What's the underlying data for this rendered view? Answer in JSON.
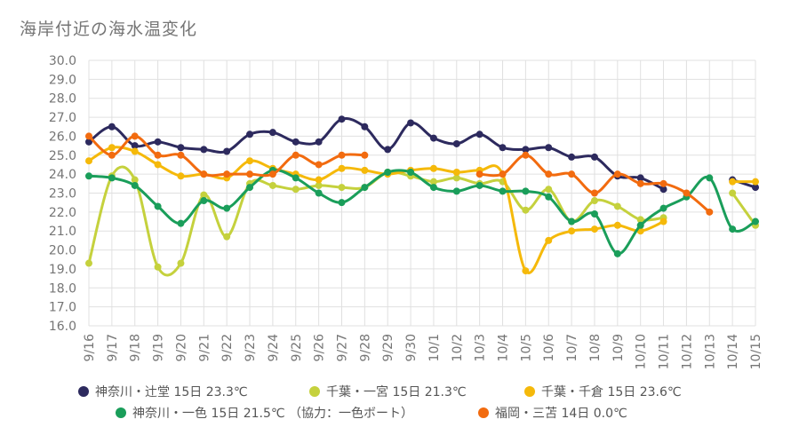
{
  "title": "海岸付近の海水温変化",
  "chart_data": {
    "type": "line",
    "categories": [
      "9/16",
      "9/17",
      "9/18",
      "9/19",
      "9/20",
      "9/21",
      "9/22",
      "9/23",
      "9/24",
      "9/25",
      "9/26",
      "9/27",
      "9/28",
      "9/29",
      "9/30",
      "10/1",
      "10/2",
      "10/3",
      "10/4",
      "10/5",
      "10/6",
      "10/7",
      "10/8",
      "10/9",
      "10/10",
      "10/11",
      "10/12",
      "10/13",
      "10/14",
      "10/15"
    ],
    "ylim": [
      16.0,
      30.0
    ],
    "yticks": [
      "16.0",
      "17.0",
      "18.0",
      "19.0",
      "20.0",
      "21.0",
      "22.0",
      "23.0",
      "24.0",
      "25.0",
      "26.0",
      "27.0",
      "28.0",
      "29.0",
      "30.0"
    ],
    "grid": true,
    "series": [
      {
        "name": "神奈川・辻堂 15日 23.3℃",
        "color": "#2d2a5e",
        "values": [
          25.7,
          26.5,
          25.5,
          25.7,
          25.4,
          25.3,
          25.2,
          26.1,
          26.2,
          25.7,
          25.7,
          26.9,
          26.5,
          25.3,
          26.7,
          25.9,
          25.6,
          26.1,
          25.4,
          25.3,
          25.4,
          24.9,
          24.9,
          23.9,
          23.8,
          23.2,
          null,
          null,
          23.7,
          23.3
        ]
      },
      {
        "name": "千葉・一宮 15日 21.3℃",
        "color": "#c5d13d",
        "values": [
          19.3,
          23.9,
          23.7,
          19.1,
          19.3,
          22.9,
          20.7,
          23.5,
          23.4,
          23.2,
          23.4,
          23.3,
          23.3,
          24.1,
          23.9,
          23.6,
          23.8,
          23.5,
          23.6,
          22.1,
          23.2,
          21.5,
          22.6,
          22.3,
          21.6,
          21.7,
          null,
          null,
          23.0,
          21.3
        ]
      },
      {
        "name": "千葉・千倉 15日 23.6℃",
        "color": "#f5b90a",
        "values": [
          24.7,
          25.4,
          25.2,
          24.5,
          23.9,
          24.0,
          23.8,
          24.7,
          24.3,
          24.0,
          23.7,
          24.3,
          24.2,
          24.0,
          24.2,
          24.3,
          24.1,
          24.2,
          24.0,
          18.9,
          20.5,
          21.0,
          21.1,
          21.3,
          21.0,
          21.5,
          null,
          null,
          23.6,
          23.6
        ]
      },
      {
        "name": "神奈川・一色 15日 21.5℃ （協力：一色ボート）",
        "color": "#1a9e5a",
        "values": [
          23.9,
          23.8,
          23.4,
          22.3,
          21.4,
          22.6,
          22.2,
          23.3,
          24.2,
          23.8,
          23.0,
          22.5,
          23.3,
          24.1,
          24.1,
          23.3,
          23.1,
          23.4,
          23.1,
          23.1,
          22.8,
          21.5,
          21.9,
          19.8,
          21.3,
          22.2,
          22.8,
          23.8,
          21.1,
          21.5
        ]
      },
      {
        "name": "福岡・三苫 14日 0.0℃",
        "color": "#f26b0f",
        "values": [
          26.0,
          25.0,
          26.0,
          25.0,
          25.0,
          24.0,
          24.0,
          24.0,
          24.0,
          25.0,
          24.5,
          25.0,
          25.0,
          null,
          null,
          null,
          null,
          24.0,
          24.0,
          25.0,
          24.0,
          24.0,
          23.0,
          24.0,
          23.5,
          23.5,
          23.0,
          22.0,
          null,
          null
        ]
      }
    ]
  }
}
